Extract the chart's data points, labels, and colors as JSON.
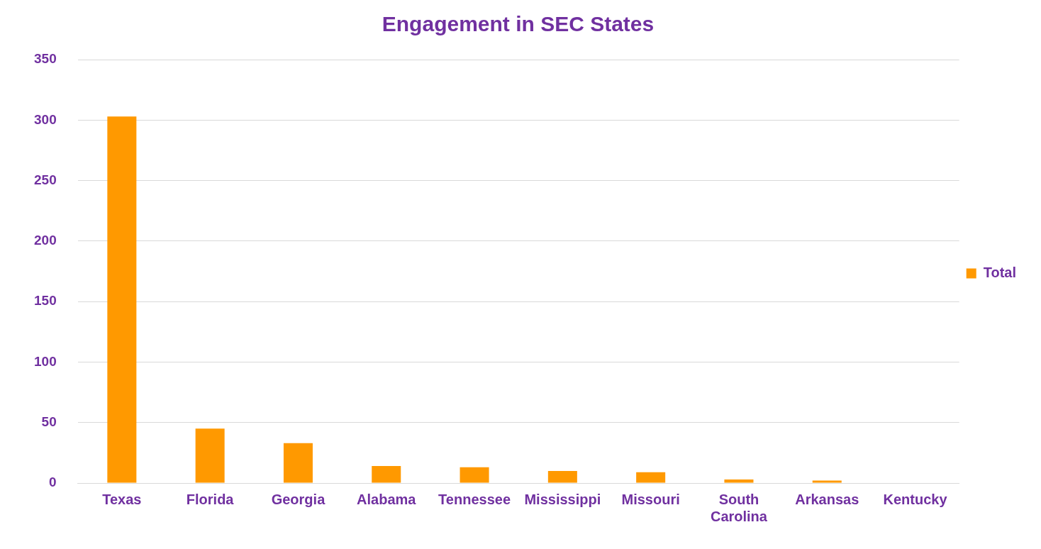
{
  "chart_data": {
    "type": "bar",
    "title": "Engagement in SEC States",
    "categories": [
      "Texas",
      "Florida",
      "Georgia",
      "Alabama",
      "Tennessee",
      "Mississippi",
      "Missouri",
      "South Carolina",
      "Arkansas",
      "Kentucky"
    ],
    "series": [
      {
        "name": "Total",
        "color": "#ff9900",
        "values": [
          303,
          45,
          33,
          14,
          13,
          10,
          9,
          3,
          2,
          0
        ]
      }
    ],
    "ylim": [
      0,
      350
    ],
    "yticks": [
      0,
      50,
      100,
      150,
      200,
      250,
      300,
      350
    ],
    "grid": "y",
    "legend": "right"
  }
}
